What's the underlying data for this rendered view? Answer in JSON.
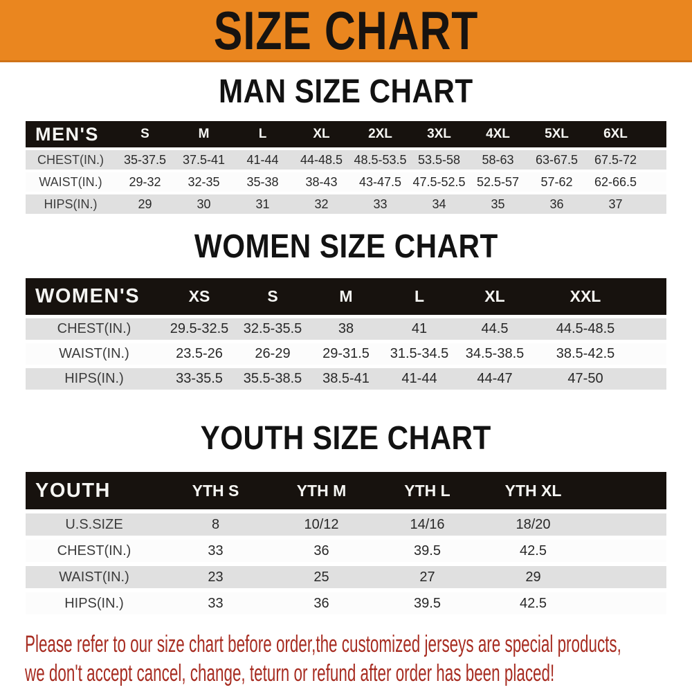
{
  "banner": {
    "title": "SIZE CHART"
  },
  "colors": {
    "banner_bg": "#EA861F",
    "banner_border": "#CF7318",
    "header_bg": "#17120E",
    "row_gray": "#E0E0E0",
    "row_white": "#FCFCFC",
    "footer_text": "#A72C21"
  },
  "sections": [
    {
      "heading": "MAN SIZE CHART",
      "table": {
        "corner_label": "MEN'S",
        "columns": [
          "S",
          "M",
          "L",
          "XL",
          "2XL",
          "3XL",
          "4XL",
          "5XL",
          "6XL"
        ],
        "rows": [
          {
            "label": "CHEST(IN.)",
            "values": [
              "35-37.5",
              "37.5-41",
              "41-44",
              "44-48.5",
              "48.5-53.5",
              "53.5-58",
              "58-63",
              "63-67.5",
              "67.5-72"
            ]
          },
          {
            "label": "WAIST(IN.)",
            "values": [
              "29-32",
              "32-35",
              "35-38",
              "38-43",
              "43-47.5",
              "47.5-52.5",
              "52.5-57",
              "57-62",
              "62-66.5"
            ]
          },
          {
            "label": "HIPS(IN.)",
            "values": [
              "29",
              "30",
              "31",
              "32",
              "33",
              "34",
              "35",
              "36",
              "37"
            ]
          }
        ]
      }
    },
    {
      "heading": "WOMEN SIZE CHART",
      "table": {
        "corner_label": "WOMEN'S",
        "columns": [
          "XS",
          "S",
          "M",
          "L",
          "XL",
          "XXL"
        ],
        "rows": [
          {
            "label": "CHEST(IN.)",
            "values": [
              "29.5-32.5",
              "32.5-35.5",
              "38",
              "41",
              "44.5",
              "44.5-48.5"
            ]
          },
          {
            "label": "WAIST(IN.)",
            "values": [
              "23.5-26",
              "26-29",
              "29-31.5",
              "31.5-34.5",
              "34.5-38.5",
              "38.5-42.5"
            ]
          },
          {
            "label": "HIPS(IN.)",
            "values": [
              "33-35.5",
              "35.5-38.5",
              "38.5-41",
              "41-44",
              "44-47",
              "47-50"
            ]
          }
        ]
      }
    },
    {
      "heading": "YOUTH SIZE CHART",
      "table": {
        "corner_label": "YOUTH",
        "columns": [
          "YTH S",
          "YTH M",
          "YTH L",
          "YTH XL"
        ],
        "rows": [
          {
            "label": "U.S.SIZE",
            "values": [
              "8",
              "10/12",
              "14/16",
              "18/20"
            ]
          },
          {
            "label": "CHEST(IN.)",
            "values": [
              "33",
              "36",
              "39.5",
              "42.5"
            ]
          },
          {
            "label": "WAIST(IN.)",
            "values": [
              "23",
              "25",
              "27",
              "29"
            ]
          },
          {
            "label": "HIPS(IN.)",
            "values": [
              "33",
              "36",
              "39.5",
              "42.5"
            ]
          }
        ]
      }
    }
  ],
  "footer": {
    "line1": "Please refer to our size chart before order,the customized jerseys are special products,",
    "line2": "we don't accept cancel, change, teturn or refund after order has been placed!"
  }
}
